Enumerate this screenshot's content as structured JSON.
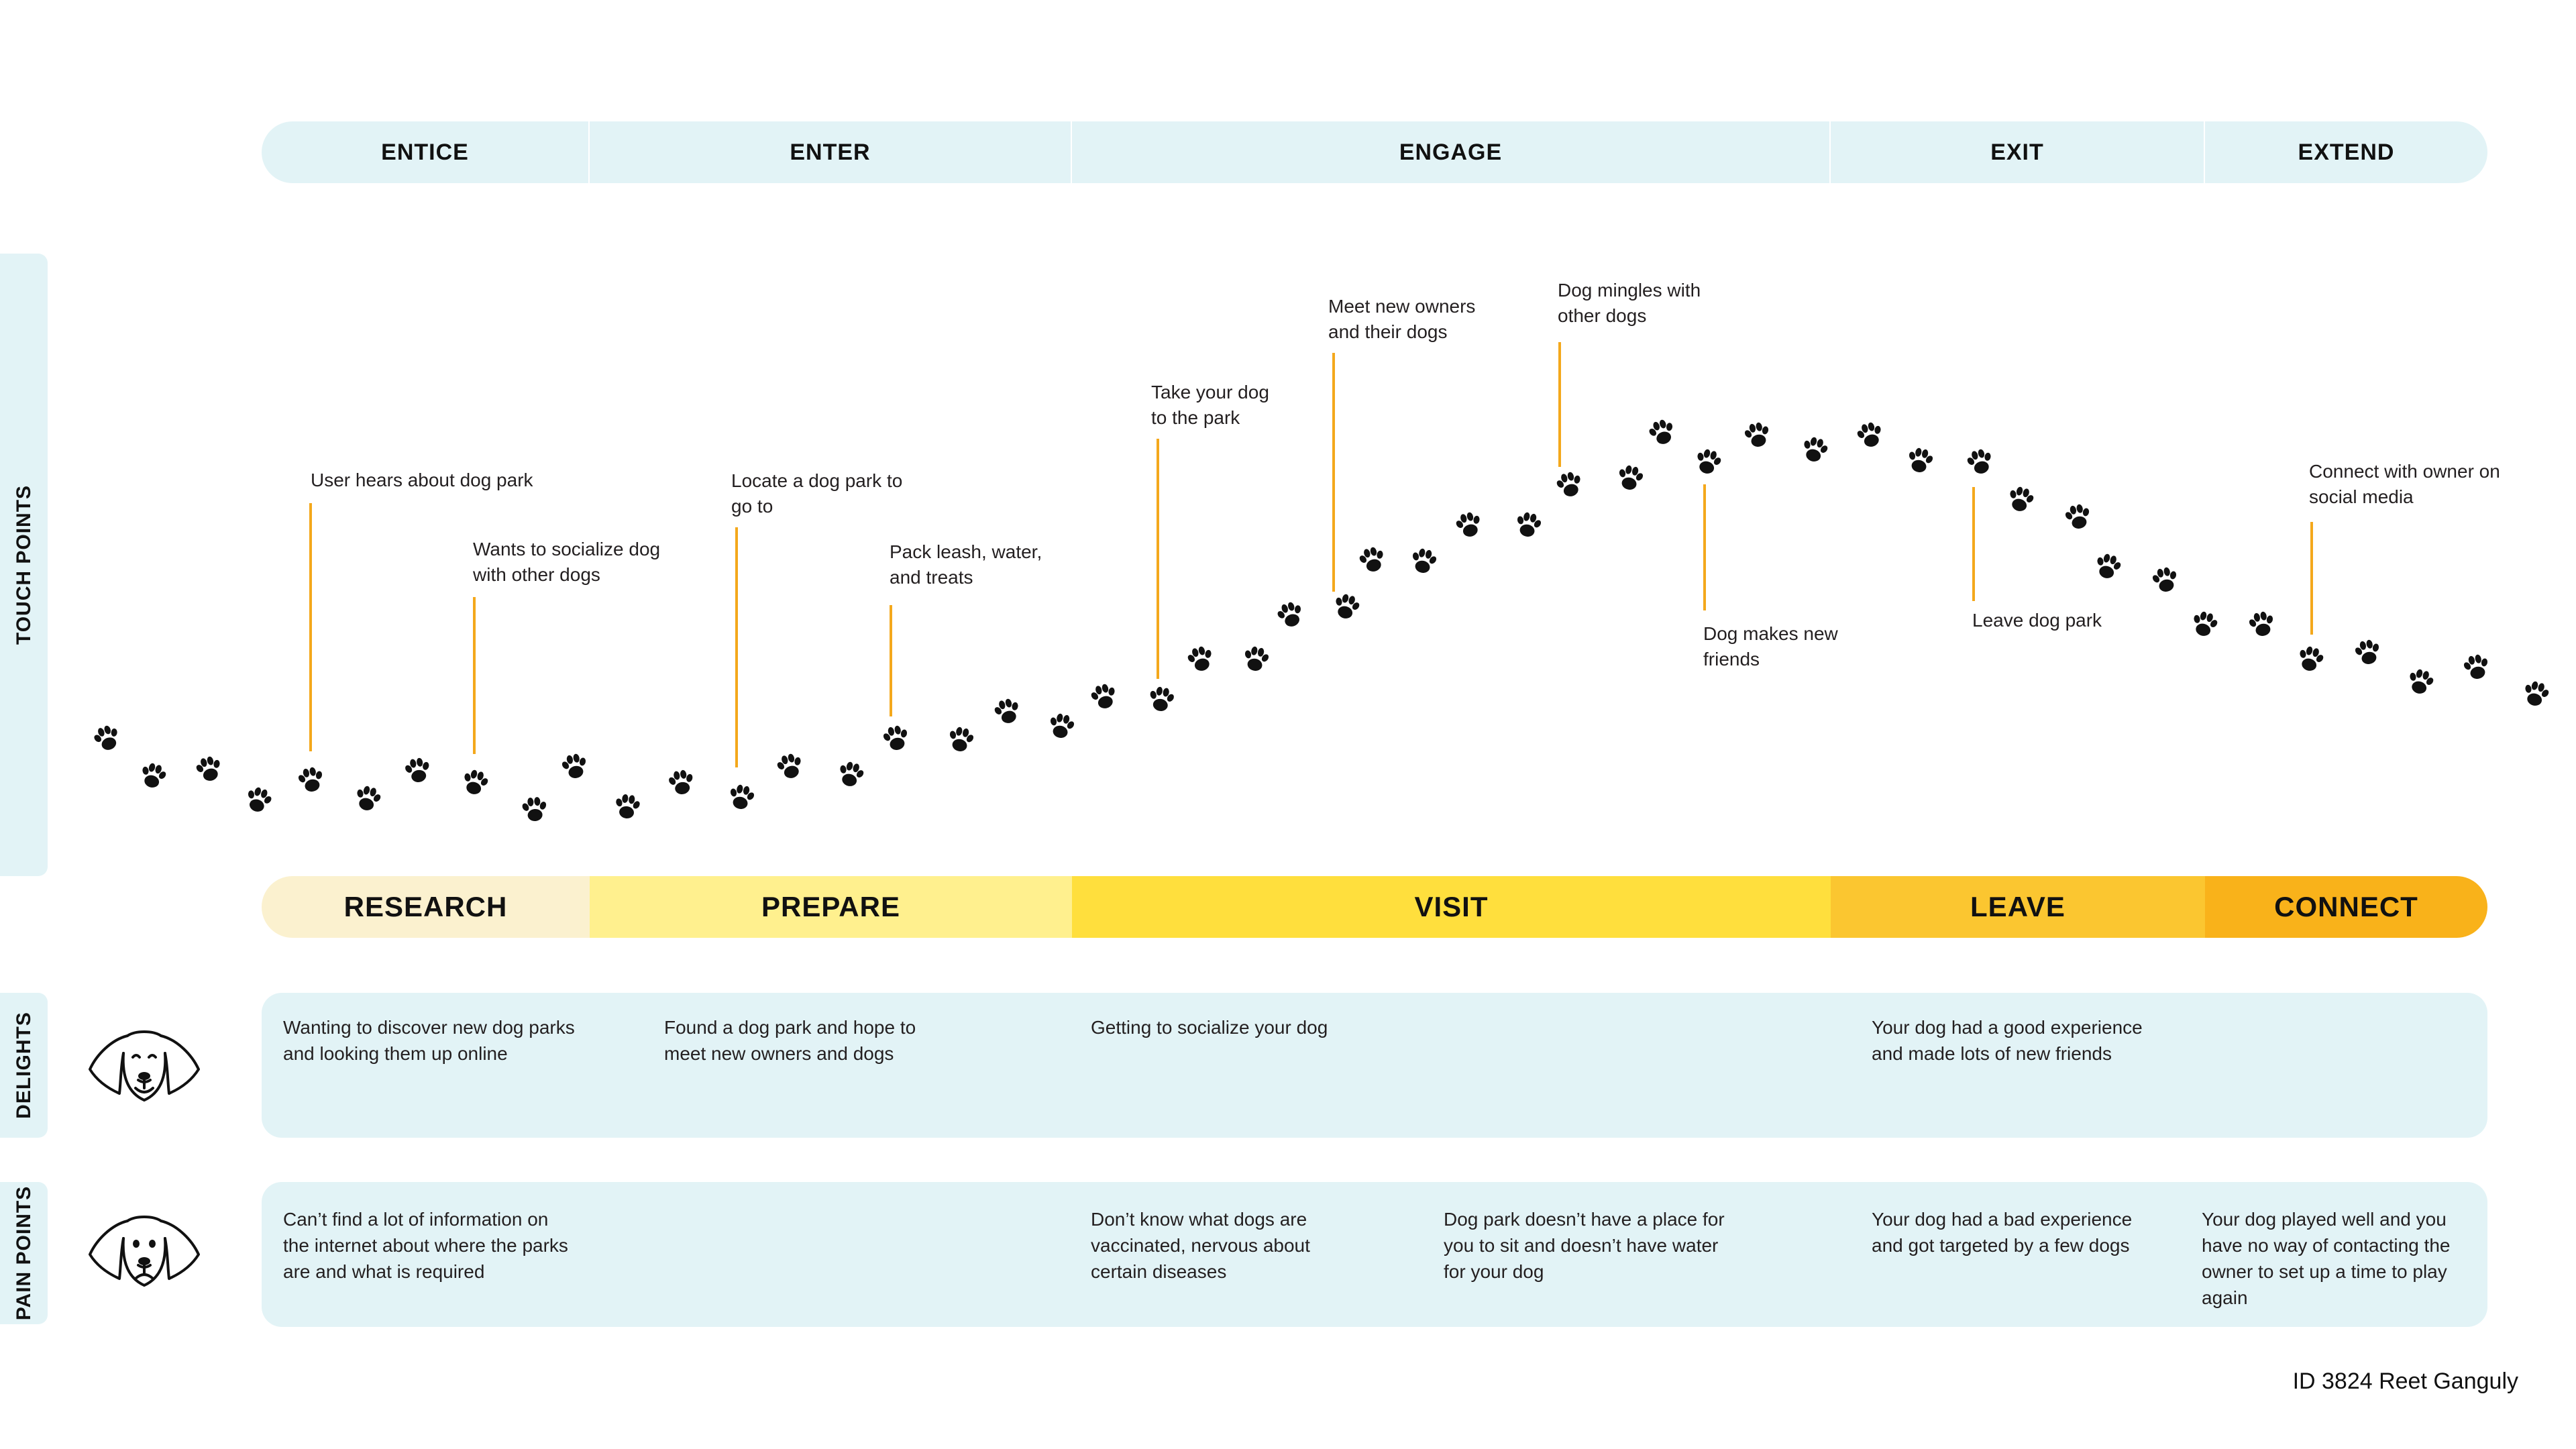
{
  "phases": [
    "ENTICE",
    "ENTER",
    "ENGAGE",
    "EXIT",
    "EXTEND"
  ],
  "side_tabs": {
    "touch_points": "TOUCH POINTS",
    "delights": "DELIGHTS",
    "pain_points": "PAIN POINTS"
  },
  "touchpoints": [
    {
      "text": "User hears about dog park"
    },
    {
      "text": "Wants to socialize dog with other dogs"
    },
    {
      "text": "Locate a dog park to go to"
    },
    {
      "text": "Pack leash, water, and treats"
    },
    {
      "text": "Take your dog to the park"
    },
    {
      "text": "Meet new owners and their dogs"
    },
    {
      "text": "Dog mingles with other dogs"
    },
    {
      "text": "Dog makes new friends"
    },
    {
      "text": "Leave dog park"
    },
    {
      "text": "Connect with owner on social media"
    }
  ],
  "stages": [
    {
      "label": "RESEARCH",
      "color": "#fbf1cf"
    },
    {
      "label": "PREPARE",
      "color": "#fff08e"
    },
    {
      "label": "VISIT",
      "color": "#ffdf3d"
    },
    {
      "label": "LEAVE",
      "color": "#fbc630"
    },
    {
      "label": "CONNECT",
      "color": "#f9b21a"
    }
  ],
  "delights": [
    "Wanting to discover new dog parks and looking them up online",
    "Found a dog park and hope to meet new owners and dogs",
    "Getting to socialize your dog",
    "Your dog had a good experience and made lots of new friends"
  ],
  "pain_points": [
    "Can’t find a lot of information on the internet about where the parks are and what is required",
    "Don’t know what dogs are vaccinated, nervous about certain diseases",
    "Dog park doesn’t have a place for you to sit and doesn’t have water for your dog",
    "Your dog had a bad experience and got targeted by a few dogs",
    "Your dog played well and you have no way of contacting the owner to set up a time to play again"
  ],
  "icons": {
    "paw": "paw-print-icon",
    "happy_dog": "happy-dog-face-icon",
    "sad_dog": "sad-dog-face-icon"
  },
  "colors": {
    "panel_bg": "#e2f3f6",
    "connector": "#f4a81c"
  },
  "credit": "ID 3824 Reet Ganguly"
}
